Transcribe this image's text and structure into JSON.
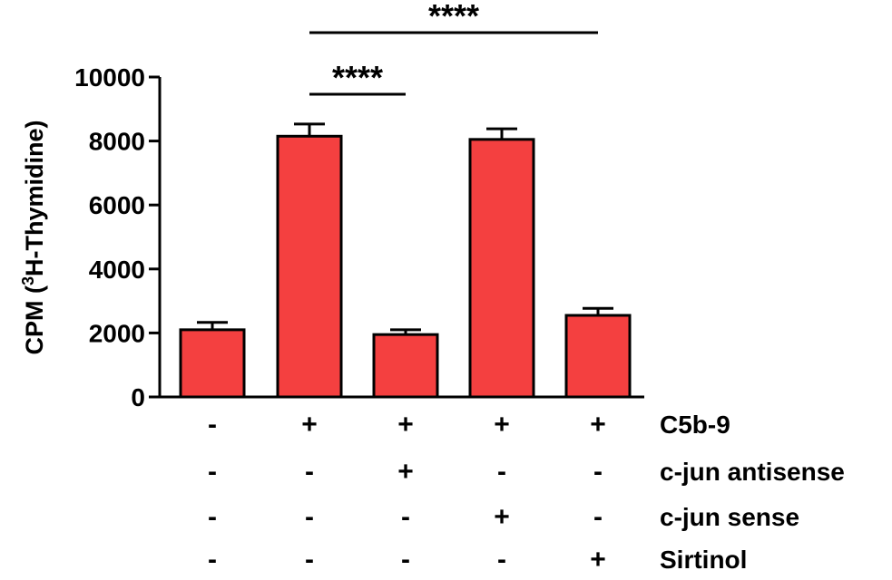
{
  "chart_data": {
    "type": "bar",
    "ylabel_prefix": "CPM (",
    "ylabel_sup": "3",
    "ylabel_suffix": "H-Thymidine)",
    "ylim": [
      0,
      10000
    ],
    "yticks": [
      "0",
      "2000",
      "4000",
      "6000",
      "8000",
      "10000"
    ],
    "bar_color": "#f44040",
    "groups": 5,
    "values": [
      2100,
      8150,
      1950,
      8050,
      2550
    ],
    "errors": [
      230,
      380,
      150,
      330,
      220
    ],
    "condition_rows": [
      {
        "label": "C5b-9",
        "signs": [
          "-",
          "+",
          "+",
          "+",
          "+"
        ]
      },
      {
        "label": "c-jun antisense",
        "signs": [
          "-",
          "-",
          "+",
          "-",
          "-"
        ]
      },
      {
        "label": "c-jun sense",
        "signs": [
          "-",
          "-",
          "-",
          "+",
          "-"
        ]
      },
      {
        "label": "Sirtinol",
        "signs": [
          "-",
          "-",
          "-",
          "-",
          "+"
        ]
      }
    ],
    "significance": [
      {
        "from": 1,
        "to": 2,
        "label": "****"
      },
      {
        "from": 1,
        "to": 4,
        "label": "****"
      }
    ]
  }
}
